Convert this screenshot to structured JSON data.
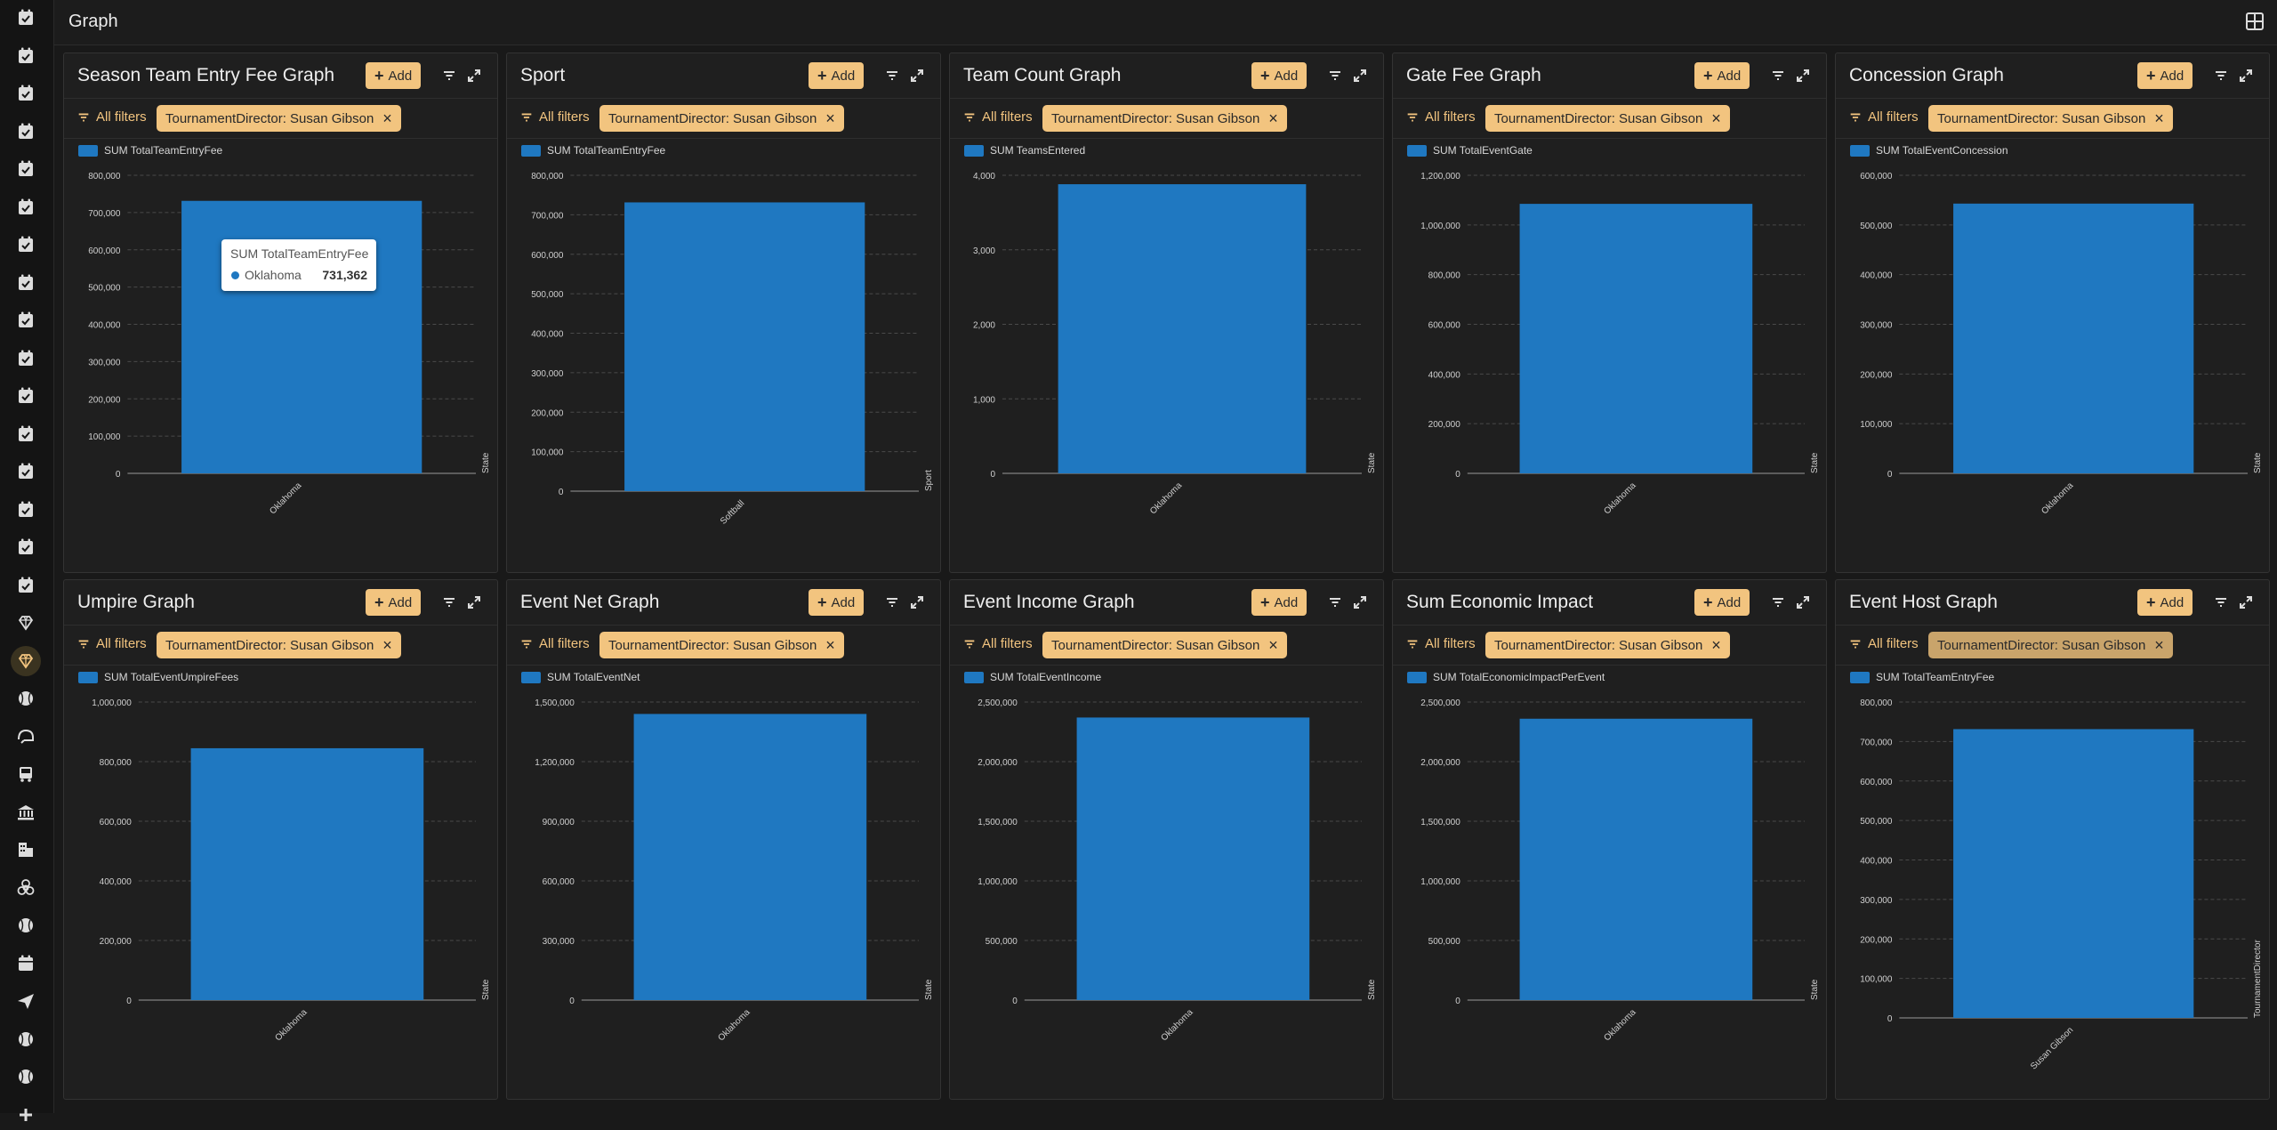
{
  "page_title": "Graph",
  "colors": {
    "accent": "#f2c47f",
    "bar": "#1f78c1",
    "background": "#191919"
  },
  "sidebar": {
    "icons": [
      "calendar-check-icon",
      "calendar-check-icon",
      "calendar-check-icon",
      "calendar-check-icon",
      "calendar-check-icon",
      "calendar-check-icon",
      "calendar-check-icon",
      "calendar-check-icon",
      "calendar-check-icon",
      "calendar-check-icon",
      "calendar-check-icon",
      "calendar-check-icon",
      "calendar-check-icon",
      "calendar-check-icon",
      "calendar-check-icon",
      "calendar-check-icon",
      "diamond-icon",
      "diamond-icon",
      "baseball-icon",
      "helmet-icon",
      "bus-icon",
      "bank-icon",
      "building-icon",
      "biohazard-icon",
      "baseball-icon",
      "calendar-icon",
      "send-icon",
      "baseball-icon",
      "baseball-icon",
      "plus-icon"
    ],
    "active_index": 17
  },
  "panel_ui": {
    "add_label": "Add",
    "all_filters_label": "All filters"
  },
  "tooltip": {
    "title": "SUM TotalTeamEntryFee",
    "category": "Oklahoma",
    "value": "731,362"
  },
  "panels": [
    {
      "title": "Season Team Entry Fee Graph",
      "filter": "TournamentDirector: Susan Gibson",
      "legend": "SUM TotalTeamEntryFee"
    },
    {
      "title": "Sport",
      "filter": "TournamentDirector: Susan Gibson",
      "legend": "SUM TotalTeamEntryFee"
    },
    {
      "title": "Team Count Graph",
      "filter": "TournamentDirector: Susan Gibson",
      "legend": "SUM TeamsEntered"
    },
    {
      "title": "Gate Fee Graph",
      "filter": "TournamentDirector: Susan Gibson",
      "legend": "SUM TotalEventGate"
    },
    {
      "title": "Concession Graph",
      "filter": "TournamentDirector: Susan Gibson",
      "legend": "SUM TotalEventConcession"
    },
    {
      "title": "Umpire Graph",
      "filter": "TournamentDirector: Susan Gibson",
      "legend": "SUM TotalEventUmpireFees"
    },
    {
      "title": "Event Net Graph",
      "filter": "TournamentDirector: Susan Gibson",
      "legend": "SUM TotalEventNet"
    },
    {
      "title": "Event Income Graph",
      "filter": "TournamentDirector: Susan Gibson",
      "legend": "SUM TotalEventIncome"
    },
    {
      "title": "Sum Economic Impact",
      "filter": "TournamentDirector: Susan Gibson",
      "legend": "SUM TotalEconomicImpactPerEvent"
    },
    {
      "title": "Event Host Graph",
      "filter": "TournamentDirector: Susan Gibson",
      "legend": "SUM TotalTeamEntryFee"
    }
  ],
  "chart_data": [
    {
      "type": "bar",
      "categories": [
        "Oklahoma"
      ],
      "values": [
        731362
      ],
      "xlabel": "State",
      "ylim": [
        0,
        800000
      ],
      "yticks": [
        0,
        100000,
        200000,
        300000,
        400000,
        500000,
        600000,
        700000,
        800000
      ],
      "ytick_labels": [
        "0",
        "100,000",
        "200,000",
        "300,000",
        "400,000",
        "500,000",
        "600,000",
        "700,000",
        "800,000"
      ],
      "grid": true,
      "legend_position": "top-left"
    },
    {
      "type": "bar",
      "categories": [
        "Softball"
      ],
      "values": [
        731362
      ],
      "xlabel": "Sport",
      "ylim": [
        0,
        800000
      ],
      "yticks": [
        0,
        100000,
        200000,
        300000,
        400000,
        500000,
        600000,
        700000,
        800000
      ],
      "ytick_labels": [
        "0",
        "100,000",
        "200,000",
        "300,000",
        "400,000",
        "500,000",
        "600,000",
        "700,000",
        "800,000"
      ],
      "grid": true,
      "legend_position": "top-left"
    },
    {
      "type": "bar",
      "categories": [
        "Oklahoma"
      ],
      "values": [
        3880
      ],
      "xlabel": "State",
      "ylim": [
        0,
        4000
      ],
      "yticks": [
        0,
        1000,
        2000,
        3000,
        4000
      ],
      "ytick_labels": [
        "0",
        "1,000",
        "2,000",
        "3,000",
        "4,000"
      ],
      "grid": true,
      "legend_position": "top-left"
    },
    {
      "type": "bar",
      "categories": [
        "Oklahoma"
      ],
      "values": [
        1085000
      ],
      "xlabel": "State",
      "ylim": [
        0,
        1200000
      ],
      "yticks": [
        0,
        200000,
        400000,
        600000,
        800000,
        1000000,
        1200000
      ],
      "ytick_labels": [
        "0",
        "200,000",
        "400,000",
        "600,000",
        "800,000",
        "1,000,000",
        "1,200,000"
      ],
      "grid": true,
      "legend_position": "top-left"
    },
    {
      "type": "bar",
      "categories": [
        "Oklahoma"
      ],
      "values": [
        543000
      ],
      "xlabel": "State",
      "ylim": [
        0,
        600000
      ],
      "yticks": [
        0,
        100000,
        200000,
        300000,
        400000,
        500000,
        600000
      ],
      "ytick_labels": [
        "0",
        "100,000",
        "200,000",
        "300,000",
        "400,000",
        "500,000",
        "600,000"
      ],
      "grid": true,
      "legend_position": "top-left"
    },
    {
      "type": "bar",
      "categories": [
        "Oklahoma"
      ],
      "values": [
        845000
      ],
      "xlabel": "State",
      "ylim": [
        0,
        1000000
      ],
      "yticks": [
        0,
        200000,
        400000,
        600000,
        800000,
        1000000
      ],
      "ytick_labels": [
        "0",
        "200,000",
        "400,000",
        "600,000",
        "800,000",
        "1,000,000"
      ],
      "grid": true,
      "legend_position": "top-left"
    },
    {
      "type": "bar",
      "categories": [
        "Oklahoma"
      ],
      "values": [
        1440000
      ],
      "xlabel": "State",
      "ylim": [
        0,
        1500000
      ],
      "yticks": [
        0,
        300000,
        600000,
        900000,
        1200000,
        1500000
      ],
      "ytick_labels": [
        "0",
        "300,000",
        "600,000",
        "900,000",
        "1,200,000",
        "1,500,000"
      ],
      "grid": true,
      "legend_position": "top-left"
    },
    {
      "type": "bar",
      "categories": [
        "Oklahoma"
      ],
      "values": [
        2370000
      ],
      "xlabel": "State",
      "ylim": [
        0,
        2500000
      ],
      "yticks": [
        0,
        500000,
        1000000,
        1500000,
        2000000,
        2500000
      ],
      "ytick_labels": [
        "0",
        "500,000",
        "1,000,000",
        "1,500,000",
        "2,000,000",
        "2,500,000"
      ],
      "grid": true,
      "legend_position": "top-left"
    },
    {
      "type": "bar",
      "categories": [
        "Oklahoma"
      ],
      "values": [
        2360000
      ],
      "xlabel": "State",
      "ylim": [
        0,
        2500000
      ],
      "yticks": [
        0,
        500000,
        1000000,
        1500000,
        2000000,
        2500000
      ],
      "ytick_labels": [
        "0",
        "500,000",
        "1,000,000",
        "1,500,000",
        "2,000,000",
        "2,500,000"
      ],
      "grid": true,
      "legend_position": "top-left"
    },
    {
      "type": "bar",
      "categories": [
        "Susan Gibson"
      ],
      "values": [
        731362
      ],
      "xlabel": "TournamentDirector",
      "ylim": [
        0,
        800000
      ],
      "yticks": [
        0,
        100000,
        200000,
        300000,
        400000,
        500000,
        600000,
        700000,
        800000
      ],
      "ytick_labels": [
        "0",
        "100,000",
        "200,000",
        "300,000",
        "400,000",
        "500,000",
        "600,000",
        "700,000",
        "800,000"
      ],
      "grid": true,
      "legend_position": "top-left"
    }
  ]
}
